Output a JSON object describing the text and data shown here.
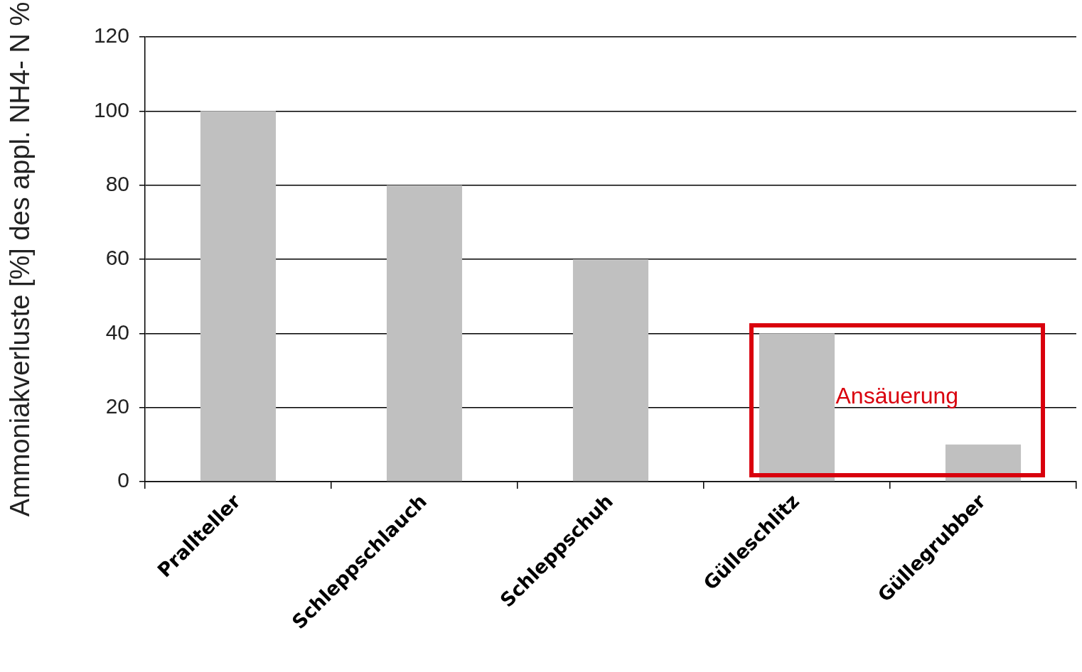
{
  "chart_data": {
    "type": "bar",
    "ylabel": "Ammoniakverluste [%] des appl. NH4- N %",
    "categories": [
      "Prallteller",
      "Schleppschlauch",
      "Schleppschuh",
      "Gülleschlitz",
      "Güllegrubber"
    ],
    "values": [
      100,
      80,
      60,
      40,
      10
    ],
    "color": "#c0c0c0",
    "ylim": [
      0,
      120
    ],
    "yticks": [
      0,
      20,
      40,
      60,
      80,
      100,
      120
    ],
    "grid": "y",
    "legend": false,
    "annotations": [
      "Ansäuerung"
    ]
  }
}
